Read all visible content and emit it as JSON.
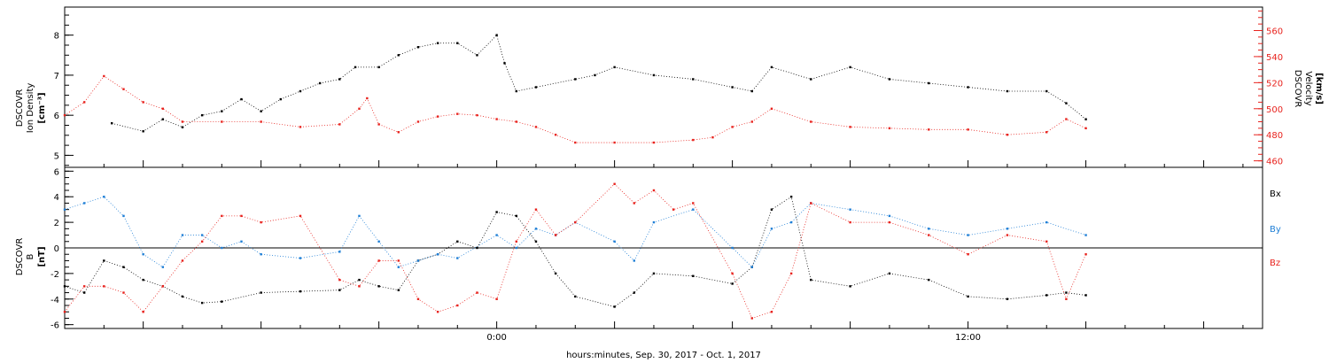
{
  "xlabel": "hours:minutes, Sep. 30, 2017 - Oct.  1, 2017",
  "colors": {
    "black": "#000000",
    "red": "#e8231e",
    "blue": "#1f7fd6"
  },
  "chart_data": [
    {
      "type": "scatter",
      "panel": "top",
      "title": "",
      "ylabel_left": [
        "DSCOVR",
        "Ion Density",
        "[cm⁻³]"
      ],
      "ylabel_right": [
        "DSCOVR",
        "Velocity",
        "[km/s]"
      ],
      "x_tick_labels": [
        "0:00",
        "12:00"
      ],
      "x_range_hours": [
        -11,
        20
      ],
      "y_left_range": [
        4.7,
        8.7
      ],
      "y_left_ticks": [
        5,
        6,
        7,
        8
      ],
      "y_right_range": [
        455,
        578
      ],
      "y_right_ticks": [
        460,
        480,
        500,
        520,
        540,
        560
      ],
      "series": [
        {
          "name": "",
          "axis": "left",
          "color": "#000000",
          "x": [
            -9.8,
            -9.0,
            -8.5,
            -8.0,
            -7.5,
            -7.0,
            -6.5,
            -6.0,
            -5.5,
            -5.0,
            -4.5,
            -4.0,
            -3.6,
            -3.0,
            -2.5,
            -2.0,
            -1.5,
            -1.0,
            -0.5,
            0.0,
            0.2,
            0.5,
            1.0,
            2.0,
            2.5,
            3.0,
            4.0,
            5.0,
            6.0,
            6.5,
            7.0,
            8.0,
            9.0,
            10.0,
            11.0,
            12.0,
            13.0,
            14.0,
            14.5,
            15.0
          ],
          "y": [
            5.8,
            5.6,
            5.9,
            5.7,
            6.0,
            6.1,
            6.4,
            6.1,
            6.4,
            6.6,
            6.8,
            6.9,
            7.2,
            7.2,
            7.5,
            7.7,
            7.8,
            7.8,
            7.5,
            8.0,
            7.3,
            6.6,
            6.7,
            6.9,
            7.0,
            7.2,
            7.0,
            6.9,
            6.7,
            6.6,
            7.2,
            6.9,
            7.2,
            6.9,
            6.8,
            6.7,
            6.6,
            6.6,
            6.3,
            5.9
          ]
        },
        {
          "name": "",
          "axis": "right",
          "color": "#e8231e",
          "x": [
            -11.0,
            -10.5,
            -10.0,
            -9.5,
            -9.0,
            -8.5,
            -8.0,
            -7.0,
            -6.0,
            -5.0,
            -4.0,
            -3.5,
            -3.3,
            -3.0,
            -2.5,
            -2.0,
            -1.5,
            -1.0,
            -0.5,
            0.0,
            0.5,
            1.0,
            1.5,
            2.0,
            3.0,
            4.0,
            5.0,
            5.5,
            6.0,
            6.5,
            7.0,
            8.0,
            9.0,
            10.0,
            11.0,
            12.0,
            13.0,
            14.0,
            14.5,
            15.0
          ],
          "y": [
            495,
            505,
            525,
            515,
            505,
            500,
            490,
            490,
            490,
            486,
            488,
            500,
            508,
            488,
            482,
            490,
            494,
            496,
            495,
            492,
            490,
            486,
            480,
            474,
            474,
            474,
            476,
            478,
            486,
            490,
            500,
            490,
            486,
            485,
            484,
            484,
            480,
            482,
            492,
            485
          ]
        }
      ]
    },
    {
      "type": "scatter",
      "panel": "bottom",
      "title": "",
      "ylabel_left": [
        "DSCOVR",
        "B",
        "[nT]"
      ],
      "x_tick_labels": [
        "0:00",
        "12:00"
      ],
      "x_range_hours": [
        -11,
        20
      ],
      "y_range": [
        -6.3,
        6.3
      ],
      "y_ticks": [
        -6,
        -4,
        -2,
        0,
        2,
        4,
        6
      ],
      "legend_placement": "right",
      "series": [
        {
          "name": "Bx",
          "color": "#000000",
          "x": [
            -11.0,
            -10.5,
            -10.0,
            -9.5,
            -9.0,
            -8.5,
            -8.0,
            -7.5,
            -7.0,
            -6.0,
            -5.0,
            -4.0,
            -3.5,
            -3.0,
            -2.5,
            -2.0,
            -1.5,
            -1.0,
            -0.5,
            0.0,
            0.5,
            1.0,
            1.5,
            2.0,
            3.0,
            3.5,
            4.0,
            5.0,
            6.0,
            6.5,
            7.0,
            7.5,
            8.0,
            9.0,
            10.0,
            11.0,
            12.0,
            13.0,
            14.0,
            14.5,
            15.0
          ],
          "y": [
            -3.0,
            -3.5,
            -1.0,
            -1.5,
            -2.5,
            -3.0,
            -3.8,
            -4.3,
            -4.2,
            -3.5,
            -3.4,
            -3.3,
            -2.5,
            -3.0,
            -3.3,
            -1.0,
            -0.5,
            0.5,
            0.0,
            2.8,
            2.5,
            0.5,
            -2.0,
            -3.8,
            -4.6,
            -3.5,
            -2.0,
            -2.2,
            -2.8,
            -1.5,
            3.0,
            4.0,
            -2.5,
            -3.0,
            -2.0,
            -2.5,
            -3.8,
            -4.0,
            -3.7,
            -3.5,
            -3.7
          ]
        },
        {
          "name": "By",
          "color": "#1f7fd6",
          "x": [
            -11.0,
            -10.5,
            -10.0,
            -9.5,
            -9.0,
            -8.5,
            -8.0,
            -7.5,
            -7.0,
            -6.5,
            -6.0,
            -5.0,
            -4.0,
            -3.5,
            -3.0,
            -2.5,
            -2.0,
            -1.5,
            -1.0,
            0.0,
            0.5,
            1.0,
            1.5,
            2.0,
            3.0,
            3.5,
            4.0,
            5.0,
            6.0,
            6.5,
            7.0,
            7.5,
            8.0,
            9.0,
            10.0,
            11.0,
            12.0,
            13.0,
            14.0,
            15.0
          ],
          "y": [
            3.0,
            3.5,
            4.0,
            2.5,
            -0.5,
            -1.5,
            1.0,
            1.0,
            0.0,
            0.5,
            -0.5,
            -0.8,
            -0.3,
            2.5,
            0.5,
            -1.5,
            -1.0,
            -0.5,
            -0.8,
            1.0,
            0.0,
            1.5,
            1.0,
            2.0,
            0.5,
            -1.0,
            2.0,
            3.0,
            0.0,
            -1.5,
            1.5,
            2.0,
            3.5,
            3.0,
            2.5,
            1.5,
            1.0,
            1.5,
            2.0,
            1.0
          ]
        },
        {
          "name": "Bz",
          "color": "#e8231e",
          "x": [
            -11.0,
            -10.5,
            -10.0,
            -9.5,
            -9.0,
            -8.5,
            -8.0,
            -7.5,
            -7.0,
            -6.5,
            -6.0,
            -5.0,
            -4.0,
            -3.5,
            -3.0,
            -2.5,
            -2.0,
            -1.5,
            -1.0,
            -0.5,
            0.0,
            0.5,
            1.0,
            1.5,
            2.0,
            3.0,
            3.5,
            4.0,
            4.5,
            5.0,
            6.0,
            6.5,
            7.0,
            7.5,
            8.0,
            9.0,
            10.0,
            11.0,
            12.0,
            13.0,
            14.0,
            14.5,
            15.0
          ],
          "y": [
            -5.0,
            -3.0,
            -3.0,
            -3.5,
            -5.0,
            -3.0,
            -1.0,
            0.5,
            2.5,
            2.5,
            2.0,
            2.5,
            -2.5,
            -3.0,
            -1.0,
            -1.0,
            -4.0,
            -5.0,
            -4.5,
            -3.5,
            -4.0,
            0.5,
            3.0,
            1.0,
            2.0,
            5.0,
            3.5,
            4.5,
            3.0,
            3.5,
            -2.0,
            -5.5,
            -5.0,
            -2.0,
            3.5,
            2.0,
            2.0,
            1.0,
            -0.5,
            1.0,
            0.5,
            -4.0,
            -0.5
          ]
        }
      ]
    }
  ]
}
